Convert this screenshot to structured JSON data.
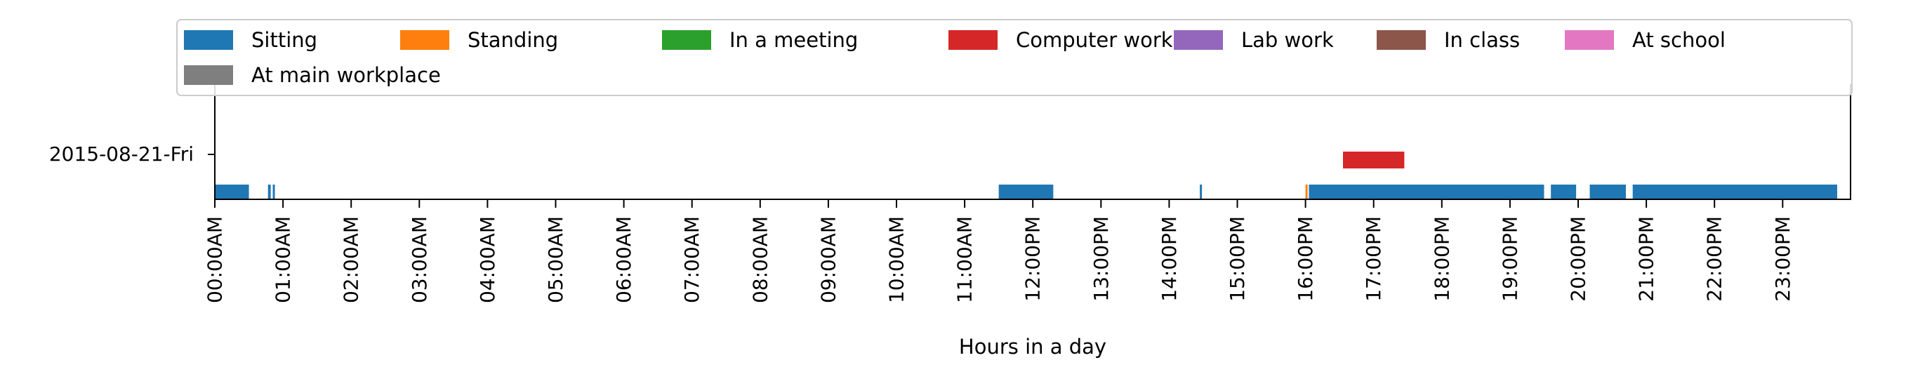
{
  "chart_data": {
    "type": "timeline",
    "title": "",
    "xlabel": "Hours in a day",
    "ylabel": "",
    "xlim": [
      0,
      24
    ],
    "row_label": "2015-08-21-Fri",
    "x_tick_labels": [
      "00:00AM",
      "01:00AM",
      "02:00AM",
      "03:00AM",
      "04:00AM",
      "05:00AM",
      "06:00AM",
      "07:00AM",
      "08:00AM",
      "09:00AM",
      "10:00AM",
      "11:00AM",
      "12:00PM",
      "13:00PM",
      "14:00PM",
      "15:00PM",
      "16:00PM",
      "17:00PM",
      "18:00PM",
      "19:00PM",
      "20:00PM",
      "21:00PM",
      "22:00PM",
      "23:00PM"
    ],
    "legend_placement": "top",
    "grid": false,
    "series": [
      {
        "name": "Sitting",
        "color": "#1f77b4",
        "lane": 0,
        "intervals": [
          [
            0.0,
            0.5
          ],
          [
            0.78,
            0.82
          ],
          [
            0.85,
            0.88
          ],
          [
            11.5,
            12.3
          ],
          [
            14.45,
            14.48
          ],
          [
            16.05,
            19.5
          ],
          [
            19.6,
            19.97
          ],
          [
            20.17,
            20.7
          ],
          [
            20.8,
            23.8
          ]
        ]
      },
      {
        "name": "Standing",
        "color": "#ff7f0e",
        "lane": 0,
        "intervals": [
          [
            16.0,
            16.03
          ]
        ]
      },
      {
        "name": "In a meeting",
        "color": "#2ca02c",
        "lane": 0,
        "intervals": []
      },
      {
        "name": "Computer work",
        "color": "#d62728",
        "lane": 1,
        "intervals": [
          [
            16.55,
            17.45
          ]
        ]
      },
      {
        "name": "Lab work",
        "color": "#9467bd",
        "lane": 1,
        "intervals": []
      },
      {
        "name": "In class",
        "color": "#8c564b",
        "lane": 1,
        "intervals": []
      },
      {
        "name": "At school",
        "color": "#e377c2",
        "lane": 1,
        "intervals": []
      },
      {
        "name": "At main workplace",
        "color": "#7f7f7f",
        "lane": 1,
        "intervals": []
      }
    ]
  }
}
